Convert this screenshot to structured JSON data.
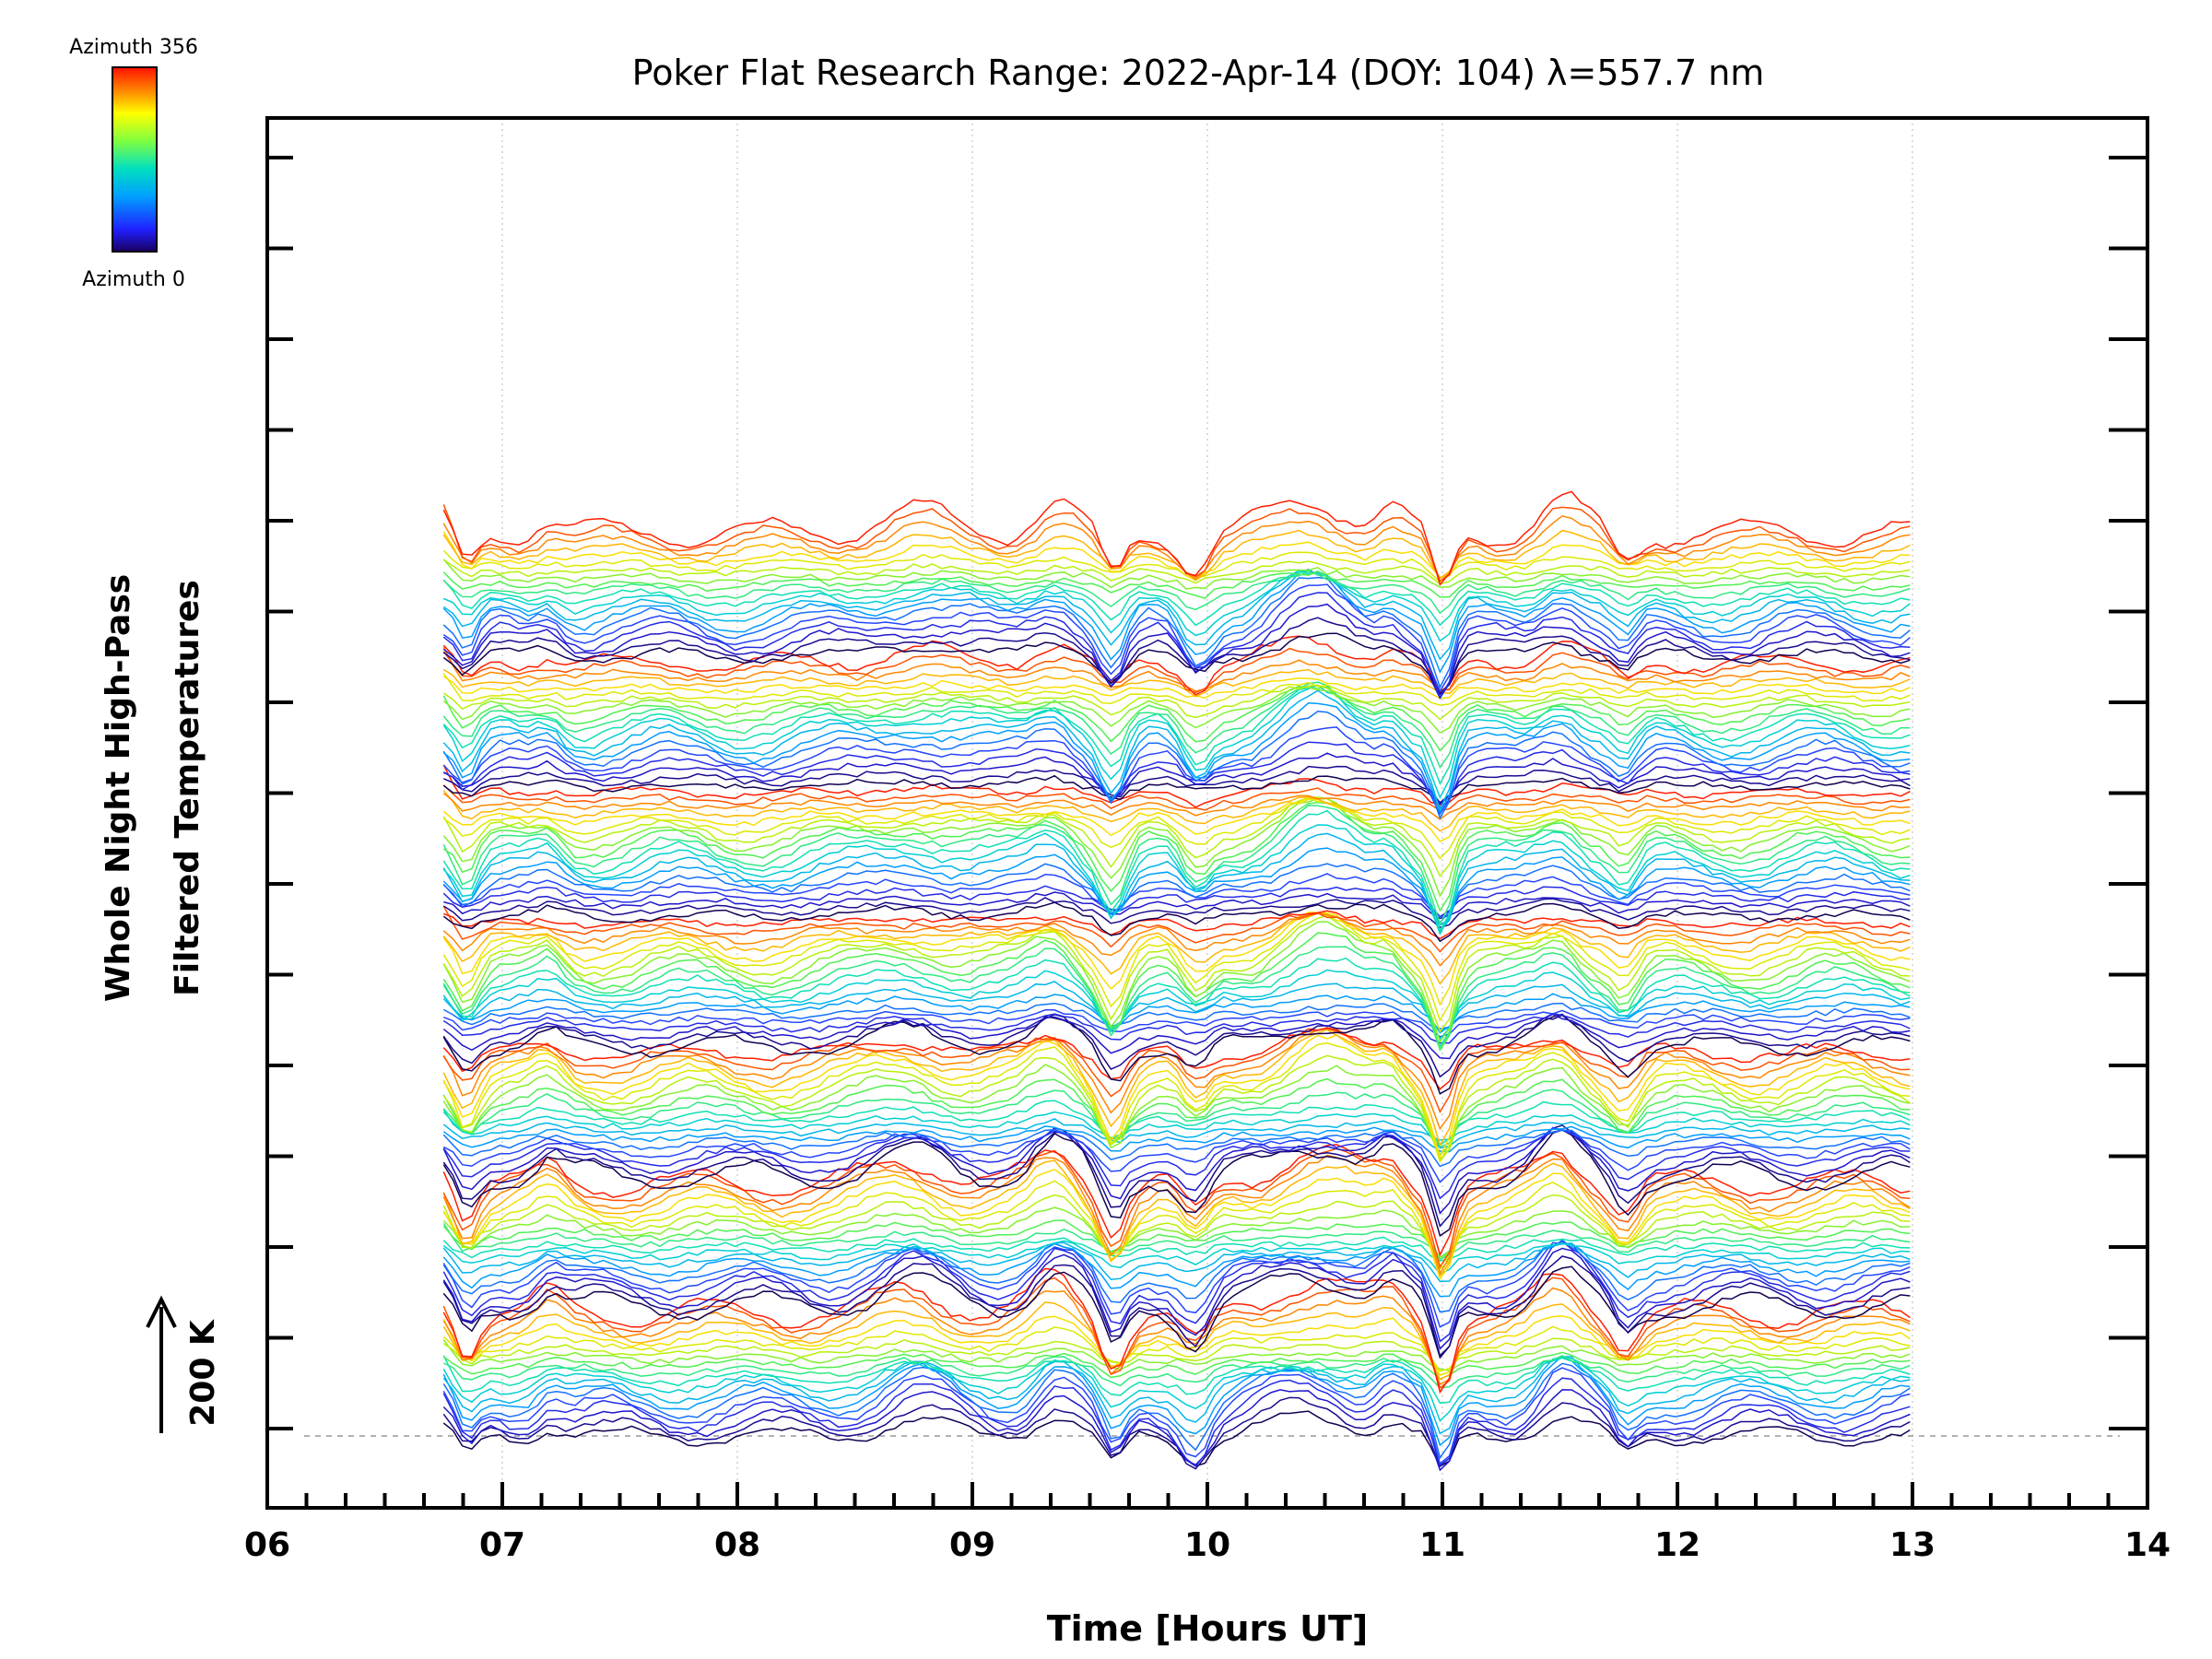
{
  "chart_data": {
    "type": "line",
    "title": "Poker Flat Research Range: 2022-Apr-14 (DOY: 104) λ=557.7 nm",
    "xlabel": "Time [Hours UT]",
    "ylabel_line1": "Whole Night High-Pass",
    "ylabel_line2": "Filtered Temperatures",
    "scale_label": "200 K",
    "x_ticks": [
      "06",
      "07",
      "08",
      "09",
      "10",
      "11",
      "12",
      "13",
      "14"
    ],
    "xlim": [
      6,
      14
    ],
    "data_time_range": [
      6.75,
      13.0
    ],
    "grid": "vertical dotted lines at each hour",
    "baseline": "dashed line at bottom trace offset",
    "colorbar": {
      "top_label": "Azimuth 356",
      "bottom_label": "Azimuth 0",
      "colormap": "rainbow (dark blue at 0 to red at 356)"
    },
    "series_count": 140,
    "series_color_order": "azimuth sweep 0 to 356 repeated in 7 stacked groups of 20 traces",
    "event_dips_hours": [
      6.85,
      9.6,
      9.95,
      11.0,
      11.78
    ],
    "event_peaks_hours": [
      7.2,
      8.7,
      9.35,
      10.4,
      10.75,
      11.5
    ]
  },
  "colors": {
    "axis": "#000000",
    "grid": "#bbbbbb",
    "baseline": "#999999"
  }
}
